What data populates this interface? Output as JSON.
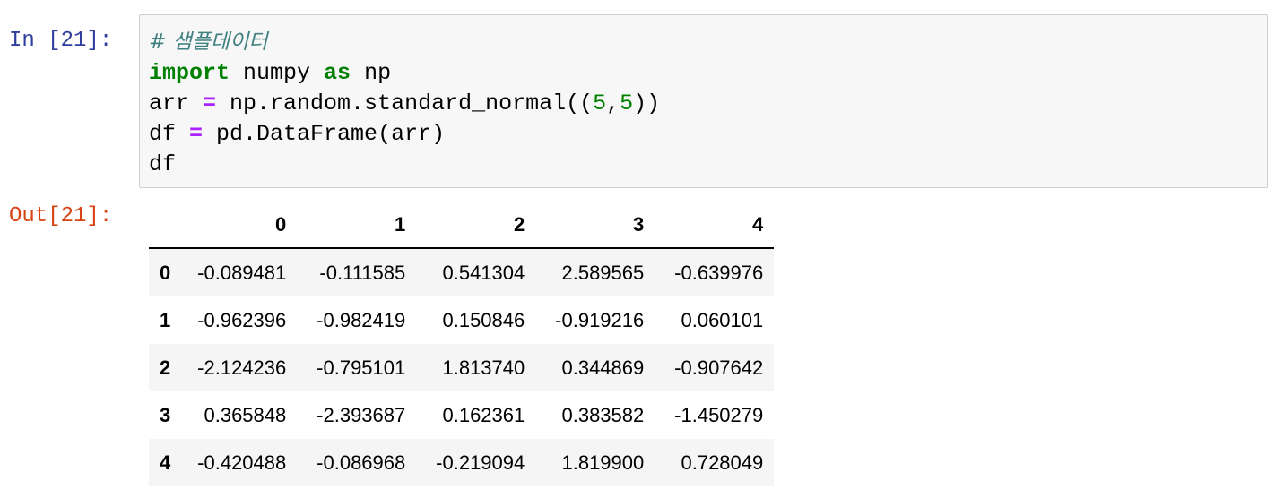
{
  "cell": {
    "prompt_in": "In [21]:",
    "code": [
      [
        {
          "text": "# 샘플데이터",
          "style": "comment"
        }
      ],
      [
        {
          "text": "import",
          "style": "keyword"
        },
        {
          "text": " numpy "
        },
        {
          "text": "as",
          "style": "keyword"
        },
        {
          "text": " np"
        }
      ],
      [
        {
          "text": "arr "
        },
        {
          "text": "=",
          "style": "operator"
        },
        {
          "text": " np.random.standard_normal(("
        },
        {
          "text": "5",
          "style": "number"
        },
        {
          "text": ","
        },
        {
          "text": "5",
          "style": "number"
        },
        {
          "text": "))"
        }
      ],
      [
        {
          "text": "df "
        },
        {
          "text": "=",
          "style": "operator"
        },
        {
          "text": " pd.DataFrame(arr)"
        }
      ],
      [
        {
          "text": "df"
        }
      ]
    ],
    "prompt_out": "Out[21]:",
    "table": {
      "columns": [
        "0",
        "1",
        "2",
        "3",
        "4"
      ],
      "index": [
        "0",
        "1",
        "2",
        "3",
        "4"
      ],
      "rows": [
        [
          "-0.089481",
          "-0.111585",
          "0.541304",
          "2.589565",
          "-0.639976"
        ],
        [
          "-0.962396",
          "-0.982419",
          "0.150846",
          "-0.919216",
          "0.060101"
        ],
        [
          "-2.124236",
          "-0.795101",
          "1.813740",
          "0.344869",
          "-0.907642"
        ],
        [
          "0.365848",
          "-2.393687",
          "0.162361",
          "0.383582",
          "-1.450279"
        ],
        [
          "-0.420488",
          "-0.086968",
          "-0.219094",
          "1.819900",
          "0.728049"
        ]
      ]
    }
  }
}
